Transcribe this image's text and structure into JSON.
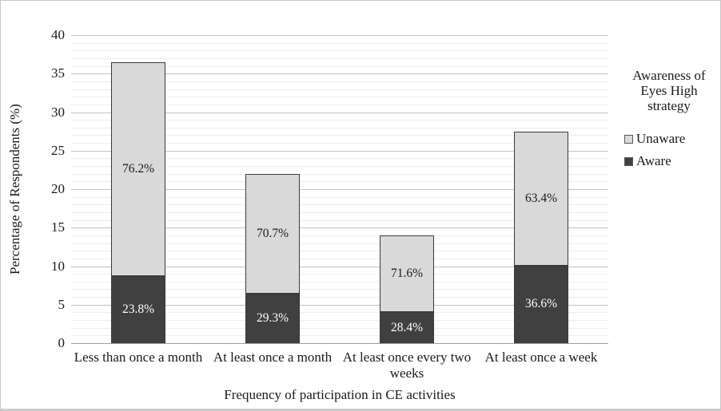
{
  "chart_data": {
    "type": "bar",
    "stacked": true,
    "xlabel": "Frequency of participation in CE activities",
    "ylabel": "Percentage of Respondents (%)",
    "ylim": [
      0,
      40
    ],
    "y_major_step": 5,
    "y_minor_step": 1,
    "y_ticks": [
      0,
      5,
      10,
      15,
      20,
      25,
      30,
      35,
      40
    ],
    "grid": true,
    "categories": [
      "Less than once a month",
      "At least once a month",
      "At least once every two weeks",
      "At least once a week"
    ],
    "series": [
      {
        "name": "Aware",
        "color": "#404040",
        "label_color": "#ffffff",
        "values": [
          8.7,
          6.4,
          4.0,
          10.1
        ],
        "labels": [
          "23.8%",
          "29.3%",
          "28.4%",
          "36.6%"
        ]
      },
      {
        "name": "Unaware",
        "color": "#d9d9d9",
        "label_color": "#1a1a1a",
        "values": [
          27.8,
          15.6,
          10.0,
          17.4
        ],
        "labels": [
          "76.2%",
          "70.7%",
          "71.6%",
          "63.4%"
        ]
      }
    ],
    "bar_totals": [
      36.5,
      22.0,
      14.0,
      27.5
    ],
    "legend": {
      "position": "right",
      "title": "Awareness of Eyes High strategy",
      "items": [
        {
          "label": "Unaware",
          "color": "#d9d9d9"
        },
        {
          "label": "Aware",
          "color": "#404040"
        }
      ]
    }
  }
}
